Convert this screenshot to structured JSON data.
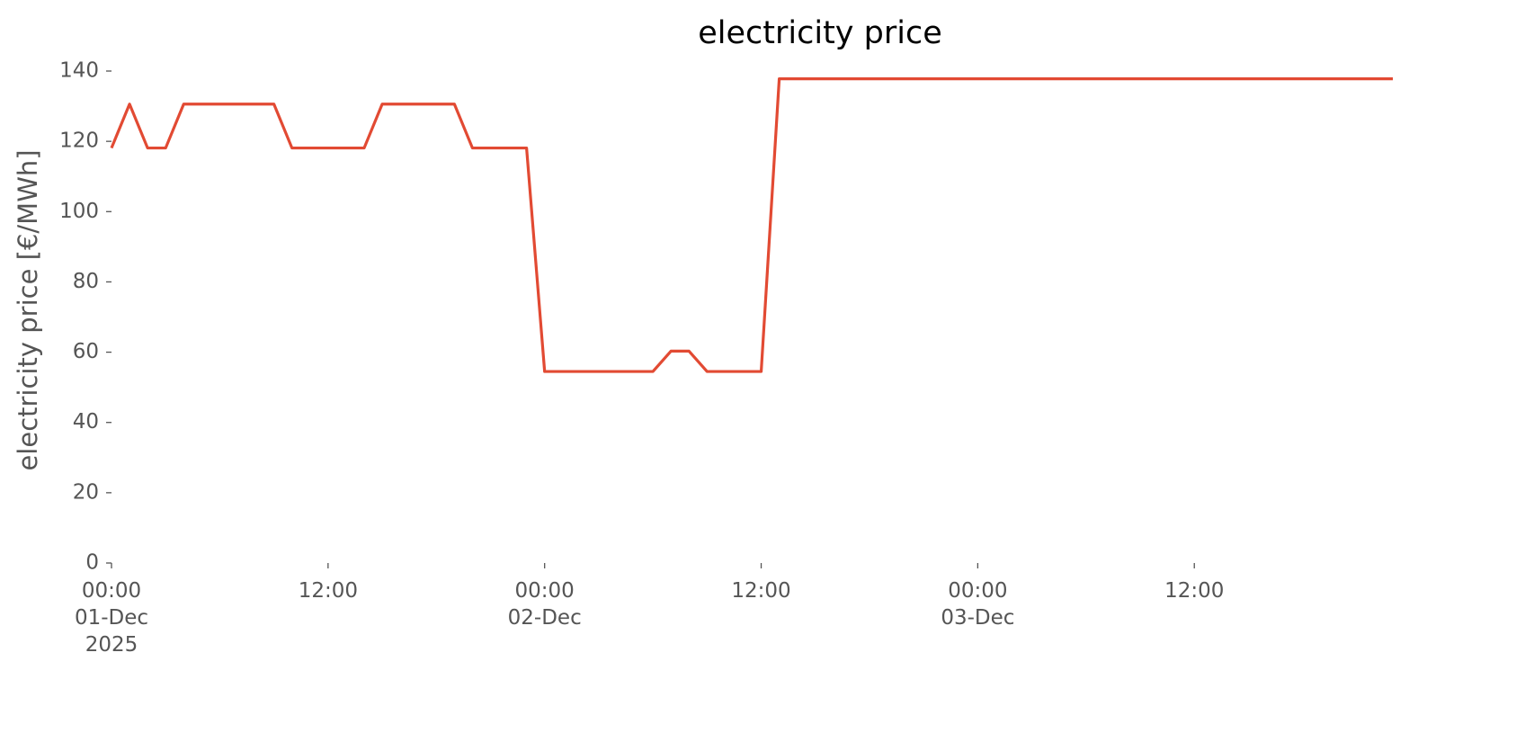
{
  "chart_data": {
    "type": "line",
    "title": "electricity price",
    "ylabel": "electricity price [€/MWh]",
    "x": [
      "2025-12-01 00:00",
      "2025-12-01 01:00",
      "2025-12-01 02:00",
      "2025-12-01 03:00",
      "2025-12-01 04:00",
      "2025-12-01 05:00",
      "2025-12-01 06:00",
      "2025-12-01 07:00",
      "2025-12-01 08:00",
      "2025-12-01 09:00",
      "2025-12-01 10:00",
      "2025-12-01 11:00",
      "2025-12-01 12:00",
      "2025-12-01 13:00",
      "2025-12-01 14:00",
      "2025-12-01 15:00",
      "2025-12-01 16:00",
      "2025-12-01 17:00",
      "2025-12-01 18:00",
      "2025-12-01 19:00",
      "2025-12-01 20:00",
      "2025-12-01 21:00",
      "2025-12-01 22:00",
      "2025-12-01 23:00",
      "2025-12-02 00:00",
      "2025-12-02 01:00",
      "2025-12-02 02:00",
      "2025-12-02 03:00",
      "2025-12-02 04:00",
      "2025-12-02 05:00",
      "2025-12-02 06:00",
      "2025-12-02 07:00",
      "2025-12-02 08:00",
      "2025-12-02 09:00",
      "2025-12-02 10:00",
      "2025-12-02 11:00",
      "2025-12-02 12:00",
      "2025-12-02 13:00",
      "2025-12-02 14:00",
      "2025-12-02 15:00",
      "2025-12-02 16:00",
      "2025-12-02 17:00",
      "2025-12-02 18:00",
      "2025-12-02 19:00",
      "2025-12-02 20:00",
      "2025-12-02 21:00",
      "2025-12-02 22:00",
      "2025-12-02 23:00",
      "2025-12-03 00:00",
      "2025-12-03 01:00",
      "2025-12-03 02:00",
      "2025-12-03 03:00",
      "2025-12-03 04:00",
      "2025-12-03 05:00",
      "2025-12-03 06:00",
      "2025-12-03 07:00",
      "2025-12-03 08:00",
      "2025-12-03 09:00",
      "2025-12-03 10:00",
      "2025-12-03 11:00",
      "2025-12-03 12:00",
      "2025-12-03 13:00",
      "2025-12-03 14:00",
      "2025-12-03 15:00",
      "2025-12-03 16:00",
      "2025-12-03 17:00",
      "2025-12-03 18:00",
      "2025-12-03 19:00",
      "2025-12-03 20:00",
      "2025-12-03 21:00",
      "2025-12-03 22:00",
      "2025-12-03 23:00"
    ],
    "values": [
      118.1,
      130.6,
      118.1,
      118.1,
      130.6,
      130.6,
      130.6,
      130.6,
      130.6,
      130.6,
      118.1,
      118.1,
      118.1,
      118.1,
      118.1,
      130.6,
      130.6,
      130.6,
      130.6,
      130.6,
      118.1,
      118.1,
      118.1,
      118.1,
      54.5,
      54.5,
      54.5,
      54.5,
      54.5,
      54.5,
      54.5,
      60.3,
      60.3,
      54.5,
      54.5,
      54.5,
      54.5,
      137.8,
      137.8,
      137.8,
      137.8,
      137.8,
      137.8,
      137.8,
      137.8,
      137.8,
      137.8,
      137.8,
      137.8,
      137.8,
      137.8,
      137.8,
      137.8,
      137.8,
      137.8,
      137.8,
      137.8,
      137.8,
      137.8,
      137.8,
      137.8,
      137.8,
      137.8,
      137.8,
      137.8,
      137.8,
      137.8,
      137.8,
      137.8,
      137.8,
      137.8,
      137.8
    ],
    "color": "#e24a33",
    "xlim": [
      "2025-12-01 00:00",
      "2025-12-03 23:00"
    ],
    "xticks": [
      {
        "value": "2025-12-01 00:00",
        "label": "00:00\n01-Dec\n2025"
      },
      {
        "value": "2025-12-01 12:00",
        "label": "12:00"
      },
      {
        "value": "2025-12-02 00:00",
        "label": "00:00\n02-Dec"
      },
      {
        "value": "2025-12-02 12:00",
        "label": "12:00"
      },
      {
        "value": "2025-12-03 00:00",
        "label": "00:00\n03-Dec"
      },
      {
        "value": "2025-12-03 12:00",
        "label": "12:00"
      }
    ],
    "ylim": [
      0,
      140
    ],
    "yticks": [
      0,
      20,
      40,
      60,
      80,
      100,
      120,
      140
    ],
    "grid": false
  }
}
